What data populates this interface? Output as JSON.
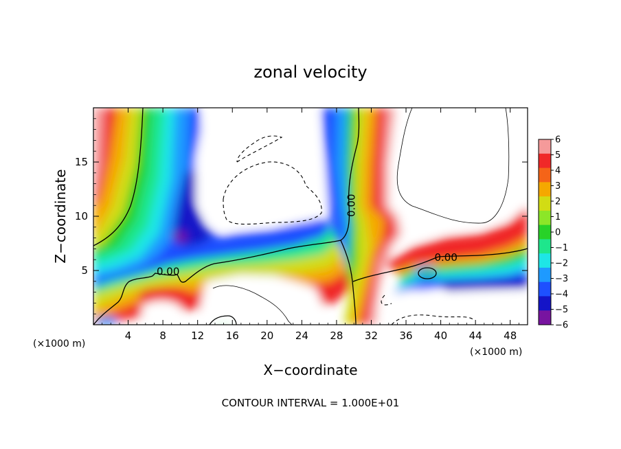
{
  "chart_data": {
    "type": "heatmap",
    "title": "zonal velocity",
    "xlabel": "X−coordinate",
    "ylabel": "Z−coordinate",
    "x_unit_left": "(×1000 m)",
    "x_unit_right": "(×1000 m)",
    "xlim": [
      0,
      50
    ],
    "ylim": [
      0,
      20
    ],
    "x_ticks": [
      4,
      8,
      12,
      16,
      20,
      24,
      28,
      32,
      36,
      40,
      44,
      48
    ],
    "x_tick_labels": [
      "4",
      "8",
      "12",
      "16",
      "20",
      "24",
      "28",
      "32",
      "36",
      "40",
      "44",
      "48"
    ],
    "y_ticks": [
      5,
      10,
      15
    ],
    "y_tick_labels": [
      "5",
      "10",
      "15"
    ],
    "colorbar": {
      "levels": [
        6,
        5,
        4,
        3,
        2,
        1,
        0,
        -1,
        -2,
        -3,
        -4,
        -5,
        -6
      ],
      "labels": [
        "6",
        "5",
        "4",
        "3",
        "2",
        "1",
        "0",
        "−1",
        "−2",
        "−3",
        "−4",
        "−5",
        "−6"
      ],
      "colors": [
        "#f59a9a",
        "#f02828",
        "#f56418",
        "#f5a800",
        "#d2dc14",
        "#8ce628",
        "#28d228",
        "#1ee68c",
        "#1ee6e6",
        "#1e9aff",
        "#1e50ff",
        "#1414c8",
        "#7814a0"
      ]
    },
    "contour_labels": [
      {
        "text": "0.00",
        "x": 8.6,
        "z": 4.9
      },
      {
        "text": "0.00",
        "x": 29.7,
        "z": 11.0
      },
      {
        "text": "0.00",
        "x": 40.6,
        "z": 6.2
      }
    ],
    "contour_interval_text": "CONTOUR INTERVAL = 1.000E+01",
    "grid": false
  }
}
